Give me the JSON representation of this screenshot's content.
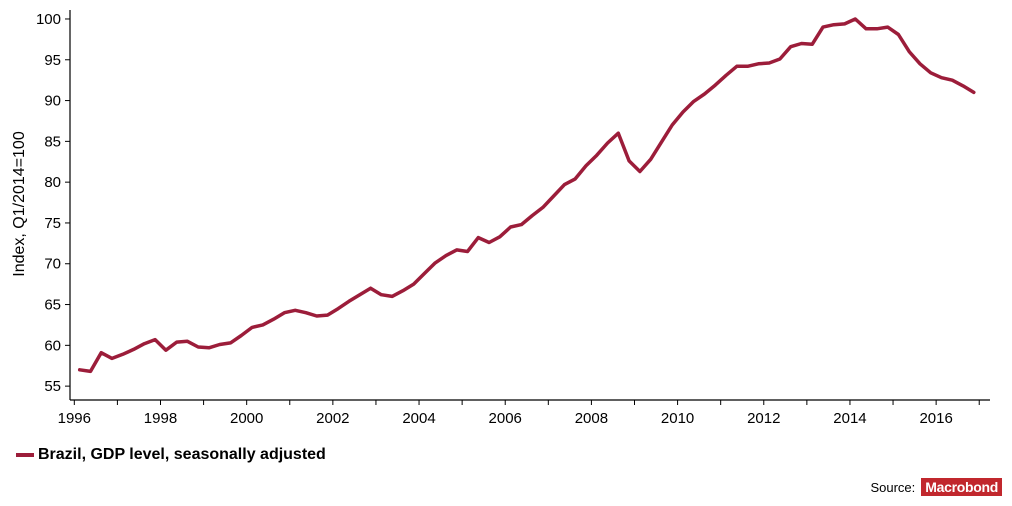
{
  "chart_data": {
    "type": "line",
    "title": "",
    "xlabel": "",
    "ylabel": "Index, Q1/2014=100",
    "xlim": [
      1995.9,
      2017.25
    ],
    "ylim": [
      53.3,
      101.1
    ],
    "x_ticks": [
      1996,
      1998,
      2000,
      2002,
      2004,
      2006,
      2008,
      2010,
      2012,
      2014,
      2016
    ],
    "y_ticks": [
      55,
      60,
      65,
      70,
      75,
      80,
      85,
      90,
      95,
      100
    ],
    "grid": false,
    "legend_position": "bottom-left",
    "series": [
      {
        "name": "Brazil, GDP level, seasonally adjusted",
        "color": "#9c1d3a",
        "x": [
          1996.125,
          1996.375,
          1996.625,
          1996.875,
          1997.125,
          1997.375,
          1997.625,
          1997.875,
          1998.125,
          1998.375,
          1998.625,
          1998.875,
          1999.125,
          1999.375,
          1999.625,
          1999.875,
          2000.125,
          2000.375,
          2000.625,
          2000.875,
          2001.125,
          2001.375,
          2001.625,
          2001.875,
          2002.125,
          2002.375,
          2002.625,
          2002.875,
          2003.125,
          2003.375,
          2003.625,
          2003.875,
          2004.125,
          2004.375,
          2004.625,
          2004.875,
          2005.125,
          2005.375,
          2005.625,
          2005.875,
          2006.125,
          2006.375,
          2006.625,
          2006.875,
          2007.125,
          2007.375,
          2007.625,
          2007.875,
          2008.125,
          2008.375,
          2008.625,
          2008.875,
          2009.125,
          2009.375,
          2009.625,
          2009.875,
          2010.125,
          2010.375,
          2010.625,
          2010.875,
          2011.125,
          2011.375,
          2011.625,
          2011.875,
          2012.125,
          2012.375,
          2012.625,
          2012.875,
          2013.125,
          2013.375,
          2013.625,
          2013.875,
          2014.125,
          2014.375,
          2014.625,
          2014.875,
          2015.125,
          2015.375,
          2015.625,
          2015.875,
          2016.125,
          2016.375,
          2016.625,
          2016.875
        ],
        "values": [
          57.0,
          56.8,
          59.1,
          58.4,
          58.9,
          59.5,
          60.2,
          60.7,
          59.4,
          60.4,
          60.5,
          59.8,
          59.7,
          60.1,
          60.3,
          61.2,
          62.2,
          62.5,
          63.2,
          64.0,
          64.3,
          64.0,
          63.6,
          63.7,
          64.5,
          65.4,
          66.2,
          67.0,
          66.2,
          66.0,
          66.7,
          67.5,
          68.8,
          70.1,
          71.0,
          71.7,
          71.5,
          73.2,
          72.6,
          73.3,
          74.5,
          74.8,
          75.9,
          76.9,
          78.3,
          79.7,
          80.4,
          82.0,
          83.3,
          84.8,
          86.0,
          82.6,
          81.3,
          82.8,
          84.9,
          87.0,
          88.6,
          89.9,
          90.8,
          91.9,
          93.1,
          94.2,
          94.2,
          94.5,
          94.6,
          95.1,
          96.6,
          97.0,
          96.9,
          99.0,
          99.3,
          99.4,
          100.0,
          98.8,
          98.8,
          99.0,
          98.1,
          96.0,
          94.5,
          93.4,
          92.8,
          92.5,
          91.8,
          91.0
        ]
      }
    ]
  },
  "legend": {
    "label": "Brazil, GDP level, seasonally adjusted",
    "color": "#9c1d3a"
  },
  "source": {
    "label": "Source:",
    "logo_text": "Macrobond",
    "logo_color": "#c1272d"
  }
}
